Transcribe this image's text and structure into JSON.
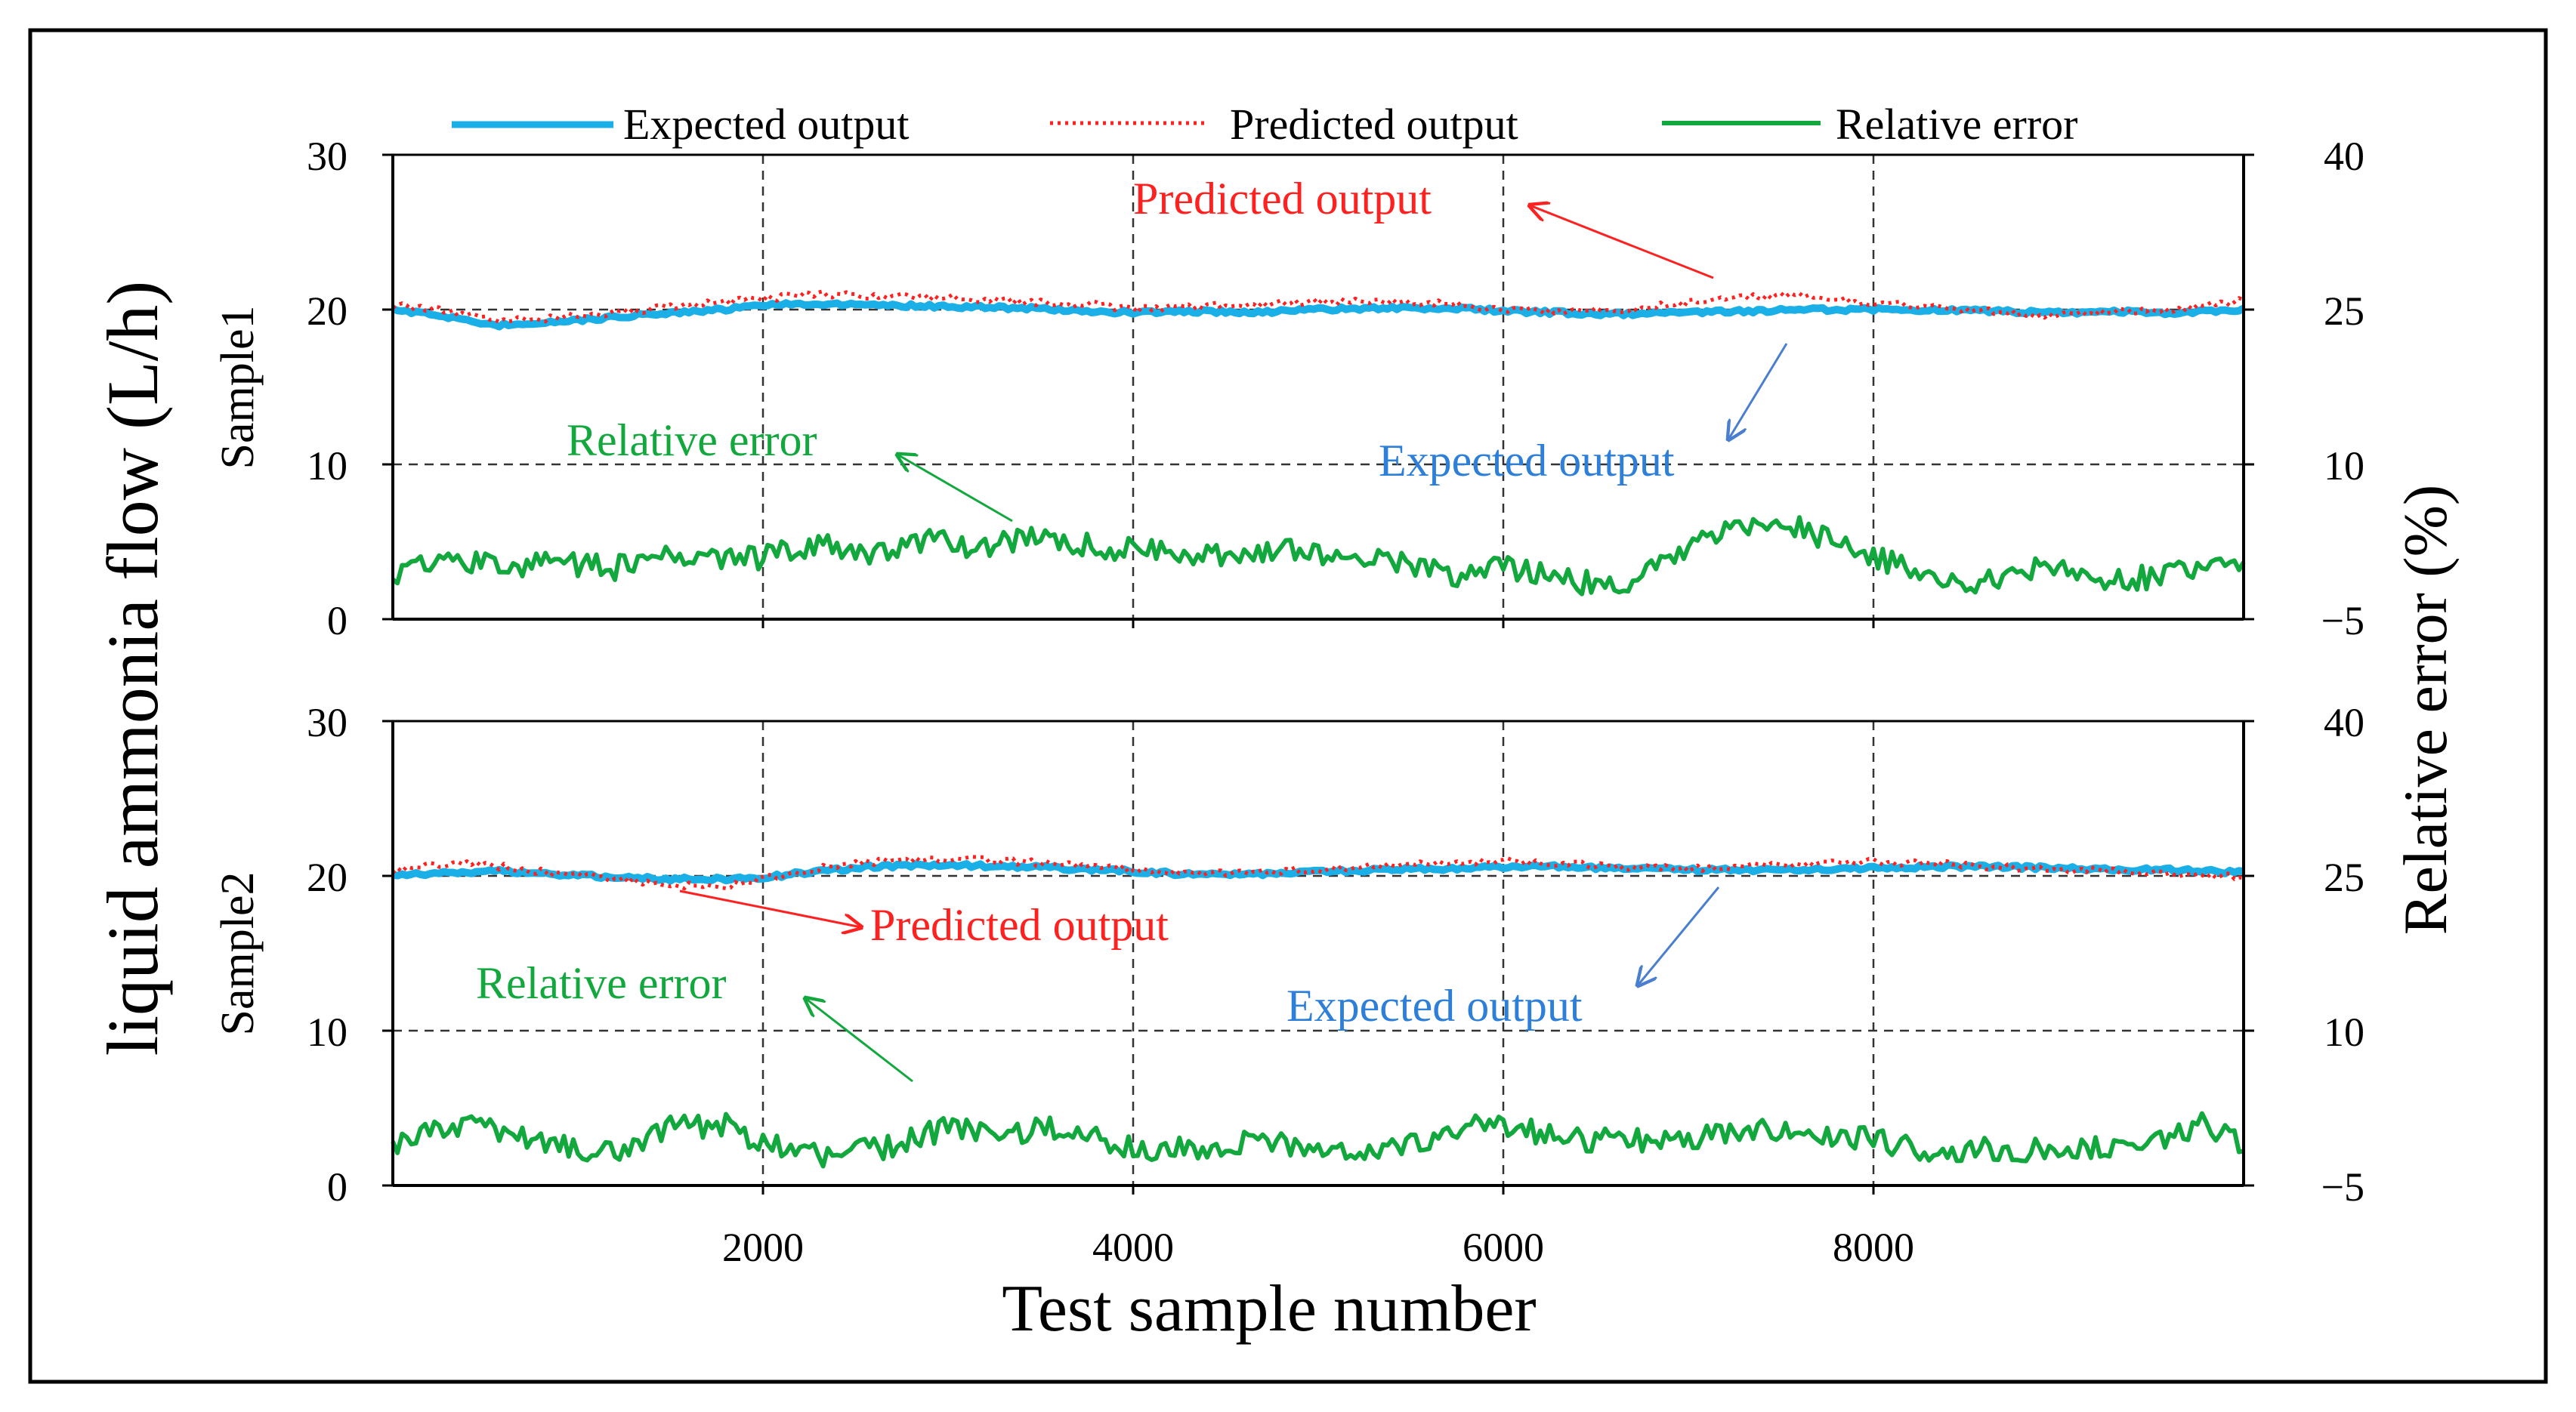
{
  "figure": {
    "y_axis_left_label": "liquid ammonia flow (L/h)",
    "y_axis_right_label": "Relative error (%)",
    "x_axis_label": "Test sample number"
  },
  "legend": {
    "expected": "Expected output",
    "predicted": "Predicted output",
    "error": "Relative error"
  },
  "colors": {
    "expected": "#1AAFE6",
    "predicted": "#FF2020",
    "error": "#12A83E",
    "arrow_blue": "#4A7FD0",
    "label_blue": "#2D7FD8"
  },
  "chart_data": [
    {
      "type": "line",
      "panel_label": "Sample1",
      "x_range": [
        0,
        10000
      ],
      "x_ticks": [
        2000,
        4000,
        6000,
        8000
      ],
      "ylim_left": [
        0,
        30
      ],
      "y_ticks_left": [
        0,
        10,
        20,
        30
      ],
      "ylim_right": [
        -5,
        40
      ],
      "y_ticks_right": [
        -5,
        10,
        25,
        40
      ],
      "series": [
        {
          "key": "expected",
          "name": "Expected output",
          "axis": "left",
          "x": [
            0,
            300,
            500,
            700,
            900,
            1200,
            1500,
            1800,
            2000,
            2300,
            2600,
            3000,
            3400,
            3800,
            4000,
            4300,
            4600,
            5000,
            5400,
            5800,
            6000,
            6300,
            6600,
            7000,
            7300,
            7600,
            8000,
            8300,
            8600,
            9000,
            9300,
            9600,
            10000
          ],
          "values": [
            20,
            19.5,
            19,
            19,
            19.2,
            19.5,
            19.8,
            20,
            20.3,
            20.4,
            20.3,
            20.2,
            20.1,
            19.9,
            19.8,
            19.9,
            19.8,
            20,
            20.1,
            20.1,
            19.9,
            19.8,
            19.7,
            19.8,
            19.9,
            20,
            20,
            20,
            19.9,
            19.8,
            19.9,
            19.8,
            20
          ]
        },
        {
          "key": "predicted",
          "name": "Predicted output",
          "axis": "left",
          "x": [
            0,
            300,
            500,
            700,
            900,
            1200,
            1500,
            1800,
            2000,
            2300,
            2600,
            3000,
            3400,
            3800,
            4000,
            4300,
            4600,
            5000,
            5400,
            5800,
            6000,
            6300,
            6600,
            7000,
            7300,
            7600,
            8000,
            8300,
            8600,
            9000,
            9300,
            9600,
            10000
          ],
          "values": [
            20.3,
            19.9,
            19.4,
            19.3,
            19.5,
            19.8,
            20.2,
            20.5,
            20.7,
            21,
            20.9,
            20.8,
            20.5,
            20.3,
            20,
            20.2,
            20.3,
            20.5,
            20.5,
            20.3,
            20,
            19.9,
            20,
            20.4,
            20.8,
            20.9,
            20.4,
            20.2,
            19.9,
            19.6,
            19.9,
            19.9,
            20.6
          ]
        },
        {
          "key": "error",
          "name": "Relative error",
          "axis": "right",
          "x": [
            0,
            300,
            600,
            900,
            1200,
            1500,
            1800,
            2000,
            2300,
            2600,
            2900,
            3200,
            3500,
            3700,
            3900,
            4000,
            4300,
            4600,
            5000,
            5400,
            5800,
            6000,
            6300,
            6600,
            6900,
            7100,
            7300,
            7500,
            7700,
            8000,
            8300,
            8600,
            8900,
            9200,
            9500,
            9800,
            10000
          ],
          "values": [
            -1,
            1,
            0,
            0.5,
            0,
            1,
            0.5,
            1,
            2.5,
            1.5,
            2.5,
            2,
            3,
            2.5,
            1,
            2,
            1,
            1.5,
            1.5,
            0.5,
            -1,
            0,
            -1,
            -2,
            1,
            3,
            4,
            4.5,
            3,
            1,
            -1,
            -1.5,
            0,
            -1,
            -1,
            0,
            0.5
          ]
        }
      ]
    },
    {
      "type": "line",
      "panel_label": "Sample2",
      "x_range": [
        0,
        10000
      ],
      "x_ticks": [
        2000,
        4000,
        6000,
        8000
      ],
      "ylim_left": [
        0,
        30
      ],
      "y_ticks_left": [
        0,
        10,
        20,
        30
      ],
      "ylim_right": [
        -5,
        40
      ],
      "y_ticks_right": [
        -5,
        10,
        25,
        40
      ],
      "series": [
        {
          "key": "expected",
          "name": "Expected output",
          "axis": "left",
          "x": [
            0,
            300,
            600,
            900,
            1200,
            1500,
            1800,
            2000,
            2300,
            2600,
            3000,
            3400,
            3800,
            4000,
            4300,
            4600,
            5000,
            5400,
            5800,
            6000,
            6300,
            6600,
            7000,
            7300,
            7600,
            8000,
            8300,
            8600,
            9000,
            9300,
            9600,
            10000
          ],
          "values": [
            20,
            20.2,
            20.3,
            20.1,
            19.9,
            19.8,
            19.8,
            19.9,
            20.3,
            20.6,
            20.7,
            20.6,
            20.4,
            20.3,
            20.1,
            20.1,
            20.3,
            20.4,
            20.5,
            20.6,
            20.6,
            20.5,
            20.4,
            20.4,
            20.4,
            20.5,
            20.6,
            20.6,
            20.5,
            20.4,
            20.4,
            20.2
          ]
        },
        {
          "key": "predicted",
          "name": "Predicted output",
          "axis": "left",
          "x": [
            0,
            300,
            600,
            900,
            1200,
            1500,
            1800,
            2000,
            2300,
            2600,
            3000,
            3400,
            3800,
            4000,
            4300,
            4600,
            5000,
            5400,
            5800,
            6000,
            6300,
            6600,
            7000,
            7300,
            7600,
            8000,
            8300,
            8600,
            9000,
            9300,
            9600,
            10000
          ],
          "values": [
            20.3,
            20.8,
            20.6,
            20.1,
            19.8,
            19.4,
            19.3,
            19.8,
            20.5,
            20.9,
            21.1,
            20.9,
            20.6,
            20.4,
            20.2,
            20.2,
            20.4,
            20.7,
            20.8,
            21,
            20.8,
            20.6,
            20.5,
            20.6,
            20.8,
            20.9,
            20.8,
            20.6,
            20.4,
            20.3,
            20.2,
            19.9
          ]
        },
        {
          "key": "error",
          "name": "Relative error",
          "axis": "right",
          "x": [
            0,
            300,
            600,
            900,
            1200,
            1500,
            1800,
            2000,
            2300,
            2600,
            2800,
            3000,
            3300,
            3600,
            3900,
            4000,
            4300,
            4600,
            5000,
            5400,
            5800,
            6000,
            6300,
            6600,
            7000,
            7300,
            7600,
            8000,
            8300,
            8600,
            8900,
            9200,
            9500,
            9800,
            10000
          ],
          "values": [
            -1,
            1,
            0,
            -1,
            -2,
            0.5,
            1,
            -1,
            -2,
            -1.5,
            -0.5,
            0.5,
            0,
            0.5,
            -1,
            -1.5,
            -1.5,
            -1,
            -1,
            -1.5,
            0.5,
            1,
            -0.5,
            -0.5,
            -0.5,
            0,
            0.5,
            -0.5,
            -2,
            -1.5,
            -1.5,
            -1.5,
            -1,
            1,
            -1
          ]
        }
      ]
    }
  ],
  "annotations": [
    [
      {
        "series": "predicted",
        "text": "Predicted output"
      },
      {
        "series": "error",
        "text": "Relative  error"
      },
      {
        "series": "expected",
        "text": "Expected output"
      }
    ],
    [
      {
        "series": "predicted",
        "text": "Predicted output"
      },
      {
        "series": "error",
        "text": "Relative  error"
      },
      {
        "series": "expected",
        "text": "Expected output"
      }
    ]
  ]
}
